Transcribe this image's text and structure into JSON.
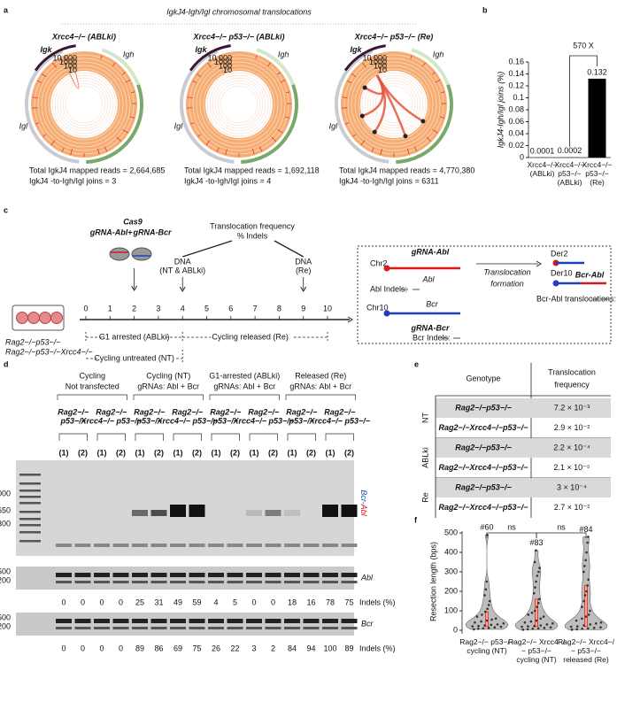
{
  "panel_labels": [
    "a",
    "b",
    "c",
    "d",
    "e",
    "f"
  ],
  "panel_a": {
    "title": "IgkJ4-Igh/Igl chromosomal translocations",
    "circos": [
      {
        "title": "Xrcc4−/− (ABLki)",
        "igk": "Igk",
        "igh": "Igh",
        "igl": "Igl",
        "scale": [
          "10,000",
          "1000",
          "100",
          "10"
        ],
        "stats": [
          "Total IgkJ4 mapped reads = 2,664,685",
          "IgkJ4 -to-Igh/Igl joins = 3"
        ]
      },
      {
        "title": "Xrcc4−/− p53−/− (ABLki)",
        "igk": "Igk",
        "igh": "Igh",
        "igl": "Igl",
        "scale": [
          "10,000",
          "1000",
          "100",
          "10"
        ],
        "stats": [
          "Total IgkJ4 mapped reads = 1,692,118",
          "IgkJ4 -to-Igh/Igl joins = 4"
        ]
      },
      {
        "title": "Xrcc4−/− p53−/− (Re)",
        "igk": "Igk",
        "igh": "Igh",
        "igl": "Igl",
        "scale": [
          "10,000",
          "1000",
          "100",
          "10"
        ],
        "stats": [
          "Total IgkJ4 mapped reads = 4,770,380",
          "IgkJ4 -to-Igh/Igl joins = 6311"
        ]
      }
    ]
  },
  "chart_data": [
    {
      "type": "bar",
      "categories": [
        "Xrcc4−/−",
        "Xrcc4−/− p53−/−",
        "Xrcc4−/− p53−/−"
      ],
      "conditions": [
        "(ABLki)",
        "(ABLki)",
        "(Re)"
      ],
      "values": [
        0.0001,
        0.0002,
        0.132
      ],
      "color": "#000000",
      "ylabel": "IgkJ4-Igh/Igl joins (%)",
      "annotation": "570 X",
      "ylim": [
        0,
        0.16
      ],
      "yticks": [
        0,
        0.02,
        0.04,
        0.06,
        0.08,
        0.1,
        0.12,
        0.14,
        0.16
      ]
    },
    {
      "type": "violin",
      "ylabel": "Resection length (bps)",
      "ylim": [
        0,
        500
      ],
      "yticks": [
        0,
        100,
        200,
        300,
        400,
        500
      ],
      "categories": [
        "Rag2−/− p53−/−",
        "Rag2−/− Xrcc4−/− p53−/−",
        "Rag2−/− Xrcc4−/− p53−/−"
      ],
      "conditions": [
        "cycling (NT)",
        "cycling (NT)",
        "released (Re)"
      ],
      "counts": [
        "#60",
        "#83",
        "#84"
      ],
      "comparisons": [
        "ns",
        "ns"
      ],
      "color": "#bdbdbd",
      "series": [
        {
          "values": [
            5,
            8,
            10,
            12,
            15,
            18,
            20,
            22,
            25,
            28,
            30,
            35,
            40,
            45,
            50,
            55,
            60,
            70,
            80,
            95,
            110,
            130,
            150,
            180,
            210,
            250,
            490
          ]
        },
        {
          "values": [
            3,
            5,
            8,
            10,
            12,
            15,
            18,
            20,
            22,
            25,
            30,
            35,
            40,
            45,
            50,
            60,
            70,
            80,
            90,
            100,
            120,
            140,
            160,
            190,
            220,
            250,
            280,
            300,
            320,
            350,
            410
          ]
        },
        {
          "values": [
            3,
            5,
            8,
            10,
            12,
            15,
            18,
            20,
            25,
            30,
            35,
            40,
            50,
            60,
            70,
            80,
            100,
            120,
            150,
            180,
            200,
            230,
            260,
            300,
            330,
            360,
            400,
            450,
            480
          ]
        }
      ]
    }
  ],
  "panel_c": {
    "cas9": "Cas9",
    "grna_abl": "gRNA-Abl",
    "plus": "+",
    "grna_bcr": "gRNA-Bcr",
    "readout": [
      "Translocation frequency",
      "% Indels"
    ],
    "dna_1": [
      "DNA",
      "(NT & ABLki)"
    ],
    "dna_2": [
      "DNA",
      "(Re)"
    ],
    "timeline": [
      0,
      1,
      2,
      3,
      4,
      5,
      6,
      7,
      8,
      9,
      10
    ],
    "phases": [
      "G1 arrested (ABLki)",
      "Cycling released (Re)",
      "Cycling untreated (NT)"
    ],
    "genotypes": [
      "Rag2−/−p53−/−",
      "Rag2−/−p53−/−Xrcc4−/−"
    ],
    "scheme": {
      "chr2": "Chr2",
      "grna_abl": "gRNA-Abl",
      "abl": "Abl",
      "abl_indels": "Abl Indels:",
      "chr10": "Chr10",
      "bcr": "Bcr",
      "grna_bcr": "gRNA-Bcr",
      "bcr_indels": "Bcr Indels:",
      "step": [
        "Translocation",
        "formation"
      ],
      "der2": "Der2",
      "der10": "Der10",
      "product": "Bcr-Abl",
      "product_label": "Bcr-Abl translocations:"
    }
  },
  "panel_d": {
    "groups": [
      [
        "Cycling",
        "Not transfected"
      ],
      [
        "Cycling (NT)",
        "gRNAs: Abl + Bcr"
      ],
      [
        "G1-arrested (ABLki)",
        "gRNAs: Abl + Bcr"
      ],
      [
        "Released (Re)",
        "gRNAs: Abl + Bcr"
      ]
    ],
    "genotypes": [
      [
        "Rag2−/−",
        "p53−/−"
      ],
      [
        "Rag2−/−",
        "Xrcc4−/− p53−/−"
      ],
      [
        "Rag2−/−",
        "p53−/−"
      ],
      [
        "Rag2−/−",
        "Xrcc4−/− p53−/−"
      ],
      [
        "Rag2−/−",
        "p53−/−"
      ],
      [
        "Rag2−/−",
        "Xrcc4−/− p53−/−"
      ],
      [
        "Rag2−/−",
        "p53−/−"
      ],
      [
        "Rag2−/−",
        "Xrcc4−/− p53−/−"
      ]
    ],
    "lanes": [
      "(1)",
      "(2)",
      "(1)",
      "(2)",
      "(1)",
      "(2)",
      "(1)",
      "(2)",
      "(1)",
      "(2)",
      "(1)",
      "(2)",
      "(1)",
      "(2)",
      "(1)",
      "(2)"
    ],
    "ladder": [
      "1000",
      "650",
      "300"
    ],
    "product": [
      "Bcr-",
      "Abl"
    ],
    "abl": {
      "label": "Abl",
      "ladder": [
        "500",
        "200"
      ],
      "indels_label": "Indels (%)",
      "indels": [
        0,
        0,
        0,
        0,
        25,
        31,
        49,
        59,
        4,
        5,
        0,
        0,
        18,
        16,
        78,
        75
      ]
    },
    "bcr": {
      "label": "Bcr",
      "ladder": [
        "500",
        "200"
      ],
      "indels_label": "Indels (%)",
      "indels": [
        0,
        0,
        0,
        0,
        89,
        86,
        69,
        75,
        26,
        22,
        3,
        2,
        84,
        94,
        100,
        89
      ]
    }
  },
  "panel_e": {
    "header": [
      "Genotype",
      [
        "Translocation",
        "frequency"
      ]
    ],
    "groups": [
      "NT",
      "ABLki",
      "Re"
    ],
    "rows": [
      [
        "Rag2−/−p53−/−",
        "7.2 × 10⁻³"
      ],
      [
        "Rag2−/−Xrcc4−/−p53−/−",
        "2.9 × 10⁻²"
      ],
      [
        "Rag2−/−p53−/−",
        "2.2 × 10⁻⁴"
      ],
      [
        "Rag2−/−Xrcc4−/−p53−/−",
        "2.1 × 10⁻⁵"
      ],
      [
        "Rag2−/−p53−/−",
        "3 × 10⁻⁴"
      ],
      [
        "Rag2−/−Xrcc4−/−p53−/−",
        "2.7 × 10⁻²"
      ]
    ]
  }
}
